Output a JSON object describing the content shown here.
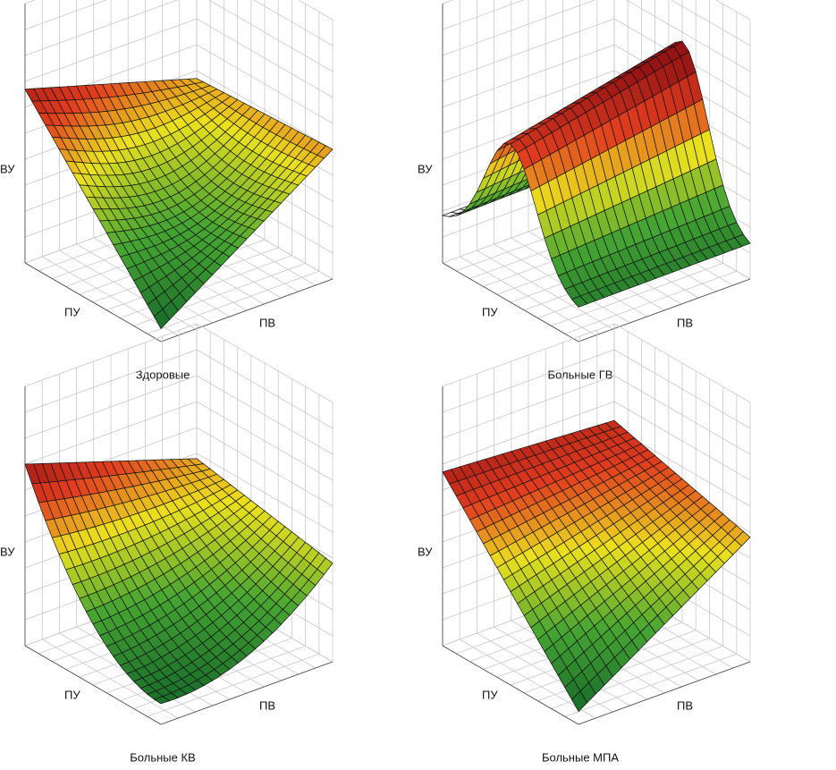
{
  "panels": [
    {
      "caption": "Здоровые",
      "z_label": "ВУ",
      "u_label": "ПУ",
      "v_label": "ПВ"
    },
    {
      "caption": "Больные ГВ",
      "z_label": "ВУ",
      "u_label": "ПУ",
      "v_label": "ПВ"
    },
    {
      "caption": "Больные КВ",
      "z_label": "ВУ",
      "u_label": "ПУ",
      "v_label": "ПВ"
    },
    {
      "caption": "Больные МПА",
      "z_label": "ВУ",
      "u_label": "ПУ",
      "v_label": "ПВ"
    }
  ]
}
